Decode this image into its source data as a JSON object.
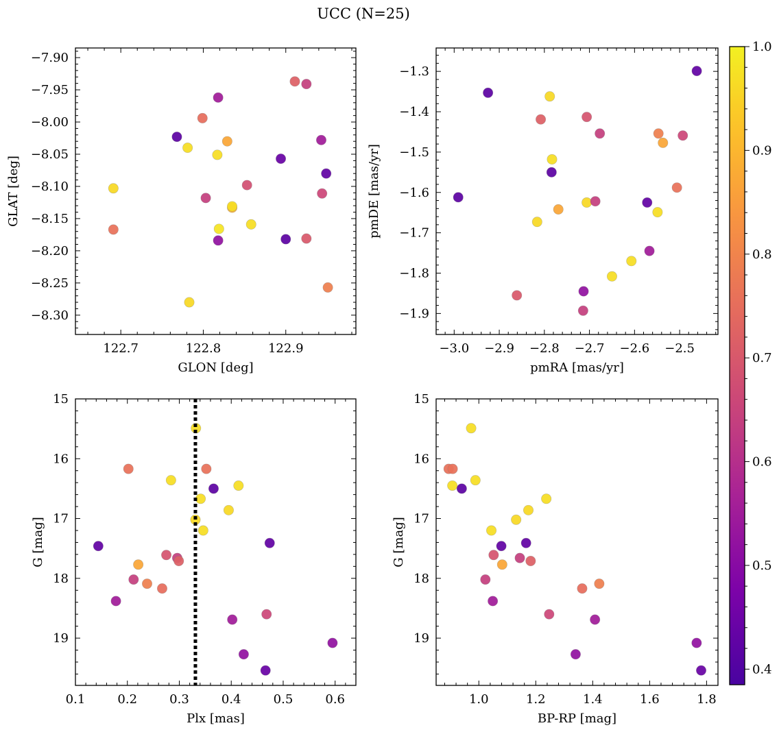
{
  "figure_title": "UCC (N=25)",
  "colors": {
    "colormap": "plasma",
    "median_line": "#000000",
    "frame": "#000000"
  },
  "colorbar": {
    "range": [
      0.385,
      1.0
    ],
    "major_ticks": [
      0.4,
      0.5,
      0.6,
      0.7,
      0.8,
      0.9,
      1.0
    ],
    "tick_labels": [
      "0.4",
      "0.5",
      "0.6",
      "0.7",
      "0.8",
      "0.9",
      "1.0"
    ]
  },
  "chart_data": [
    {
      "type": "scatter",
      "id": "sky",
      "xlabel": "GLON [deg]",
      "ylabel": "GLAT [deg]",
      "xlim": [
        122.645,
        122.985
      ],
      "ylim": [
        -8.33,
        -7.885
      ],
      "y_inverted": false,
      "xticks": [
        122.7,
        122.8,
        122.9
      ],
      "xtick_labels": [
        "122.7",
        "122.8",
        "122.9"
      ],
      "yticks": [
        -7.9,
        -7.95,
        -8.0,
        -8.05,
        -8.1,
        -8.15,
        -8.2,
        -8.25,
        -8.3
      ],
      "ytick_labels": [
        "−7.90",
        "−7.95",
        "−8.00",
        "−8.05",
        "−8.10",
        "−8.15",
        "−8.20",
        "−8.25",
        "−8.30"
      ],
      "points": [
        {
          "x": 122.691,
          "y": -8.103,
          "c": 0.96
        },
        {
          "x": 122.691,
          "y": -8.167,
          "c": 0.76
        },
        {
          "x": 122.768,
          "y": -8.023,
          "c": 0.42
        },
        {
          "x": 122.781,
          "y": -8.04,
          "c": 0.97
        },
        {
          "x": 122.783,
          "y": -8.28,
          "c": 0.96
        },
        {
          "x": 122.799,
          "y": -7.994,
          "c": 0.75
        },
        {
          "x": 122.803,
          "y": -8.118,
          "c": 0.64
        },
        {
          "x": 122.818,
          "y": -7.962,
          "c": 0.55
        },
        {
          "x": 122.817,
          "y": -8.051,
          "c": 0.97
        },
        {
          "x": 122.819,
          "y": -8.166,
          "c": 0.98
        },
        {
          "x": 122.818,
          "y": -8.184,
          "c": 0.52
        },
        {
          "x": 122.829,
          "y": -8.03,
          "c": 0.87
        },
        {
          "x": 122.835,
          "y": -8.133,
          "c": 0.89
        },
        {
          "x": 122.835,
          "y": -8.131,
          "c": 0.97
        },
        {
          "x": 122.853,
          "y": -8.098,
          "c": 0.68
        },
        {
          "x": 122.858,
          "y": -8.159,
          "c": 0.97
        },
        {
          "x": 122.894,
          "y": -8.057,
          "c": 0.44
        },
        {
          "x": 122.9,
          "y": -8.182,
          "c": 0.42
        },
        {
          "x": 122.911,
          "y": -7.937,
          "c": 0.72
        },
        {
          "x": 122.925,
          "y": -7.941,
          "c": 0.64
        },
        {
          "x": 122.925,
          "y": -8.181,
          "c": 0.7
        },
        {
          "x": 122.943,
          "y": -8.028,
          "c": 0.55
        },
        {
          "x": 122.944,
          "y": -8.111,
          "c": 0.66
        },
        {
          "x": 122.949,
          "y": -8.08,
          "c": 0.43
        },
        {
          "x": 122.951,
          "y": -8.257,
          "c": 0.79
        }
      ]
    },
    {
      "type": "scatter",
      "id": "pm",
      "xlabel": "pmRA [mas/yr]",
      "ylabel": "pmDE [mas/yr]",
      "xlim": [
        -3.04,
        -2.415
      ],
      "ylim": [
        -1.952,
        -1.242
      ],
      "y_inverted": false,
      "xticks": [
        -3.0,
        -2.9,
        -2.8,
        -2.7,
        -2.6,
        -2.5
      ],
      "xtick_labels": [
        "−3.0",
        "−2.9",
        "−2.8",
        "−2.7",
        "−2.6",
        "−2.5"
      ],
      "yticks": [
        -1.3,
        -1.4,
        -1.5,
        -1.6,
        -1.7,
        -1.8,
        -1.9
      ],
      "ytick_labels": [
        "−1.3",
        "−1.4",
        "−1.5",
        "−1.6",
        "−1.7",
        "−1.8",
        "−1.9"
      ],
      "points": [
        {
          "x": -2.462,
          "y": -1.299,
          "c": 0.43
        },
        {
          "x": -2.925,
          "y": -1.353,
          "c": 0.42
        },
        {
          "x": -2.788,
          "y": -1.362,
          "c": 0.96
        },
        {
          "x": -2.808,
          "y": -1.419,
          "c": 0.72
        },
        {
          "x": -2.706,
          "y": -1.413,
          "c": 0.69
        },
        {
          "x": -2.677,
          "y": -1.454,
          "c": 0.64
        },
        {
          "x": -2.547,
          "y": -1.454,
          "c": 0.79
        },
        {
          "x": -2.537,
          "y": -1.477,
          "c": 0.87
        },
        {
          "x": -2.493,
          "y": -1.459,
          "c": 0.66
        },
        {
          "x": -2.783,
          "y": -1.518,
          "c": 0.97
        },
        {
          "x": -2.784,
          "y": -1.55,
          "c": 0.42
        },
        {
          "x": -2.506,
          "y": -1.588,
          "c": 0.76
        },
        {
          "x": -2.991,
          "y": -1.612,
          "c": 0.42
        },
        {
          "x": -2.706,
          "y": -1.625,
          "c": 0.96
        },
        {
          "x": -2.687,
          "y": -1.622,
          "c": 0.64
        },
        {
          "x": -2.572,
          "y": -1.625,
          "c": 0.43
        },
        {
          "x": -2.549,
          "y": -1.649,
          "c": 0.97
        },
        {
          "x": -2.769,
          "y": -1.642,
          "c": 0.87
        },
        {
          "x": -2.816,
          "y": -1.673,
          "c": 0.96
        },
        {
          "x": -2.567,
          "y": -1.745,
          "c": 0.55
        },
        {
          "x": -2.607,
          "y": -1.77,
          "c": 0.97
        },
        {
          "x": -2.65,
          "y": -1.808,
          "c": 0.97
        },
        {
          "x": -2.861,
          "y": -1.855,
          "c": 0.7
        },
        {
          "x": -2.713,
          "y": -1.845,
          "c": 0.52
        },
        {
          "x": -2.714,
          "y": -1.893,
          "c": 0.64
        }
      ]
    },
    {
      "type": "scatter",
      "id": "plx_g",
      "xlabel": "Plx [mas]",
      "ylabel": "G [mag]",
      "xlim": [
        0.1,
        0.64
      ],
      "ylim": [
        15.0,
        19.79
      ],
      "y_inverted": true,
      "xticks": [
        0.1,
        0.2,
        0.3,
        0.4,
        0.5,
        0.6
      ],
      "xtick_labels": [
        "0.1",
        "0.2",
        "0.3",
        "0.4",
        "0.5",
        "0.6"
      ],
      "yticks": [
        15,
        16,
        17,
        18,
        19
      ],
      "ytick_labels": [
        "15",
        "16",
        "17",
        "18",
        "19"
      ],
      "vline": 0.331,
      "points": [
        {
          "x": 0.332,
          "y": 15.49,
          "c": 0.97
        },
        {
          "x": 0.202,
          "y": 16.17,
          "c": 0.76
        },
        {
          "x": 0.352,
          "y": 16.17,
          "c": 0.76
        },
        {
          "x": 0.284,
          "y": 16.36,
          "c": 0.97
        },
        {
          "x": 0.414,
          "y": 16.45,
          "c": 0.97
        },
        {
          "x": 0.366,
          "y": 16.5,
          "c": 0.42
        },
        {
          "x": 0.341,
          "y": 16.67,
          "c": 0.97
        },
        {
          "x": 0.395,
          "y": 16.86,
          "c": 0.96
        },
        {
          "x": 0.331,
          "y": 17.02,
          "c": 0.96
        },
        {
          "x": 0.346,
          "y": 17.2,
          "c": 0.97
        },
        {
          "x": 0.144,
          "y": 17.46,
          "c": 0.43
        },
        {
          "x": 0.474,
          "y": 17.41,
          "c": 0.43
        },
        {
          "x": 0.275,
          "y": 17.61,
          "c": 0.69
        },
        {
          "x": 0.296,
          "y": 17.66,
          "c": 0.64
        },
        {
          "x": 0.299,
          "y": 17.71,
          "c": 0.72
        },
        {
          "x": 0.221,
          "y": 17.77,
          "c": 0.87
        },
        {
          "x": 0.212,
          "y": 18.02,
          "c": 0.64
        },
        {
          "x": 0.238,
          "y": 18.09,
          "c": 0.79
        },
        {
          "x": 0.267,
          "y": 18.17,
          "c": 0.75
        },
        {
          "x": 0.178,
          "y": 18.38,
          "c": 0.55
        },
        {
          "x": 0.468,
          "y": 18.6,
          "c": 0.66
        },
        {
          "x": 0.402,
          "y": 18.69,
          "c": 0.55
        },
        {
          "x": 0.595,
          "y": 19.08,
          "c": 0.52
        },
        {
          "x": 0.424,
          "y": 19.27,
          "c": 0.52
        },
        {
          "x": 0.466,
          "y": 19.54,
          "c": 0.44
        }
      ]
    },
    {
      "type": "scatter",
      "id": "cmd",
      "xlabel": "BP-RP [mag]",
      "ylabel": "G [mag]",
      "xlim": [
        0.85,
        1.84
      ],
      "ylim": [
        15.0,
        19.79
      ],
      "y_inverted": true,
      "xticks": [
        1.0,
        1.2,
        1.4,
        1.6,
        1.8
      ],
      "xtick_labels": [
        "1.0",
        "1.2",
        "1.4",
        "1.6",
        "1.8"
      ],
      "yticks": [
        15,
        16,
        17,
        18,
        19
      ],
      "ytick_labels": [
        "15",
        "16",
        "17",
        "18",
        "19"
      ],
      "points": [
        {
          "x": 0.973,
          "y": 15.49,
          "c": 0.97
        },
        {
          "x": 0.894,
          "y": 16.17,
          "c": 0.76
        },
        {
          "x": 0.908,
          "y": 16.17,
          "c": 0.76
        },
        {
          "x": 0.988,
          "y": 16.36,
          "c": 0.97
        },
        {
          "x": 0.907,
          "y": 16.45,
          "c": 0.97
        },
        {
          "x": 0.94,
          "y": 16.5,
          "c": 0.42
        },
        {
          "x": 1.237,
          "y": 16.67,
          "c": 0.97
        },
        {
          "x": 1.174,
          "y": 16.86,
          "c": 0.96
        },
        {
          "x": 1.131,
          "y": 17.02,
          "c": 0.96
        },
        {
          "x": 1.044,
          "y": 17.2,
          "c": 0.97
        },
        {
          "x": 1.079,
          "y": 17.46,
          "c": 0.43
        },
        {
          "x": 1.166,
          "y": 17.41,
          "c": 0.43
        },
        {
          "x": 1.052,
          "y": 17.61,
          "c": 0.69
        },
        {
          "x": 1.144,
          "y": 17.66,
          "c": 0.64
        },
        {
          "x": 1.182,
          "y": 17.71,
          "c": 0.72
        },
        {
          "x": 1.082,
          "y": 17.77,
          "c": 0.87
        },
        {
          "x": 1.023,
          "y": 18.02,
          "c": 0.64
        },
        {
          "x": 1.423,
          "y": 18.09,
          "c": 0.79
        },
        {
          "x": 1.363,
          "y": 18.17,
          "c": 0.75
        },
        {
          "x": 1.049,
          "y": 18.38,
          "c": 0.55
        },
        {
          "x": 1.247,
          "y": 18.6,
          "c": 0.66
        },
        {
          "x": 1.408,
          "y": 18.69,
          "c": 0.55
        },
        {
          "x": 1.765,
          "y": 19.08,
          "c": 0.52
        },
        {
          "x": 1.34,
          "y": 19.27,
          "c": 0.52
        },
        {
          "x": 1.781,
          "y": 19.54,
          "c": 0.44
        }
      ]
    }
  ]
}
